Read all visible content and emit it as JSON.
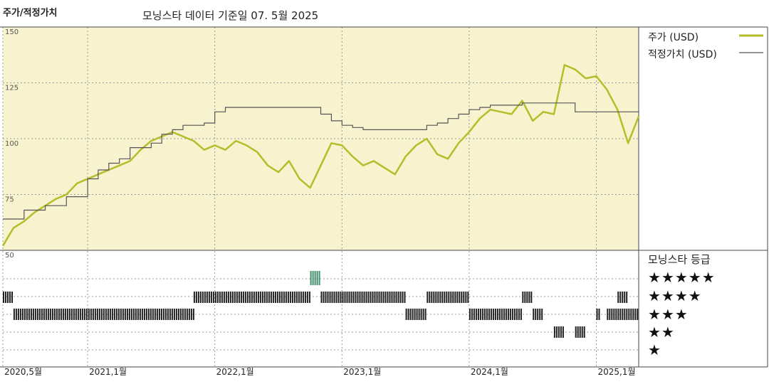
{
  "header": {
    "title": "주가/적정가치",
    "subtitle": "모닝스타 데이터 기준일 07. 5월 2025"
  },
  "legend": {
    "price_label": "주가 (USD)",
    "fair_label": "적정가치 (USD)",
    "price_color": "#b5bd2a",
    "fair_color": "#555555"
  },
  "rating": {
    "title": "모닝스타 등급",
    "stars": [
      "★★★★★",
      "★★★★",
      "★★★",
      "★★",
      "★"
    ],
    "bar_color": "#222222",
    "five_star_color": "#3f8f6a"
  },
  "chart_data": {
    "type": "line",
    "x_axis": {
      "ticks": [
        "2020,5월",
        "2021,1월",
        "2022,1월",
        "2023,1월",
        "2024,1월",
        "2025,1월"
      ],
      "tick_dates": [
        "2020-05",
        "2021-01",
        "2022-01",
        "2023-01",
        "2024-01",
        "2025-01"
      ],
      "range": [
        "2020-05",
        "2025-05"
      ]
    },
    "y_axis": {
      "ticks": [
        150,
        125,
        100,
        75,
        50
      ],
      "range": [
        50,
        150
      ]
    },
    "grid": true,
    "plot_background": "#f7f3cf",
    "series": [
      {
        "name": "주가 (USD)",
        "color": "#b5bd2a",
        "points": [
          [
            "2020-05",
            52
          ],
          [
            "2020-06",
            60
          ],
          [
            "2020-07",
            63
          ],
          [
            "2020-08",
            67
          ],
          [
            "2020-09",
            70
          ],
          [
            "2020-10",
            73
          ],
          [
            "2020-11",
            75
          ],
          [
            "2020-12",
            80
          ],
          [
            "2021-01",
            82
          ],
          [
            "2021-02",
            84
          ],
          [
            "2021-03",
            86
          ],
          [
            "2021-04",
            88
          ],
          [
            "2021-05",
            90
          ],
          [
            "2021-06",
            95
          ],
          [
            "2021-07",
            99
          ],
          [
            "2021-08",
            101
          ],
          [
            "2021-09",
            103
          ],
          [
            "2021-10",
            101
          ],
          [
            "2021-11",
            99
          ],
          [
            "2021-12",
            95
          ],
          [
            "2022-01",
            97
          ],
          [
            "2022-02",
            95
          ],
          [
            "2022-03",
            99
          ],
          [
            "2022-04",
            97
          ],
          [
            "2022-05",
            94
          ],
          [
            "2022-06",
            88
          ],
          [
            "2022-07",
            85
          ],
          [
            "2022-08",
            90
          ],
          [
            "2022-09",
            82
          ],
          [
            "2022-10",
            78
          ],
          [
            "2022-11",
            88
          ],
          [
            "2022-12",
            98
          ],
          [
            "2023-01",
            97
          ],
          [
            "2023-02",
            92
          ],
          [
            "2023-03",
            88
          ],
          [
            "2023-04",
            90
          ],
          [
            "2023-05",
            87
          ],
          [
            "2023-06",
            84
          ],
          [
            "2023-07",
            92
          ],
          [
            "2023-08",
            97
          ],
          [
            "2023-09",
            100
          ],
          [
            "2023-10",
            93
          ],
          [
            "2023-11",
            91
          ],
          [
            "2023-12",
            98
          ],
          [
            "2024-01",
            103
          ],
          [
            "2024-02",
            109
          ],
          [
            "2024-03",
            113
          ],
          [
            "2024-04",
            112
          ],
          [
            "2024-05",
            111
          ],
          [
            "2024-06",
            117
          ],
          [
            "2024-07",
            108
          ],
          [
            "2024-08",
            112
          ],
          [
            "2024-09",
            111
          ],
          [
            "2024-10",
            133
          ],
          [
            "2024-11",
            131
          ],
          [
            "2024-12",
            127
          ],
          [
            "2025-01",
            128
          ],
          [
            "2025-02",
            122
          ],
          [
            "2025-03",
            113
          ],
          [
            "2025-04",
            98
          ],
          [
            "2025-05",
            110
          ]
        ]
      },
      {
        "name": "적정가치 (USD)",
        "color": "#555555",
        "points": [
          [
            "2020-05",
            64
          ],
          [
            "2020-07",
            68
          ],
          [
            "2020-09",
            70
          ],
          [
            "2020-10",
            70
          ],
          [
            "2020-11",
            74
          ],
          [
            "2021-01",
            82
          ],
          [
            "2021-02",
            86
          ],
          [
            "2021-03",
            89
          ],
          [
            "2021-04",
            91
          ],
          [
            "2021-05",
            96
          ],
          [
            "2021-07",
            98
          ],
          [
            "2021-08",
            102
          ],
          [
            "2021-09",
            104
          ],
          [
            "2021-10",
            106
          ],
          [
            "2021-12",
            107
          ],
          [
            "2022-01",
            112
          ],
          [
            "2022-02",
            114
          ],
          [
            "2022-03",
            114
          ],
          [
            "2022-10",
            114
          ],
          [
            "2022-11",
            111
          ],
          [
            "2022-12",
            108
          ],
          [
            "2023-01",
            106
          ],
          [
            "2023-02",
            105
          ],
          [
            "2023-03",
            104
          ],
          [
            "2023-08",
            104
          ],
          [
            "2023-09",
            106
          ],
          [
            "2023-10",
            107
          ],
          [
            "2023-11",
            109
          ],
          [
            "2023-12",
            111
          ],
          [
            "2024-01",
            113
          ],
          [
            "2024-02",
            114
          ],
          [
            "2024-03",
            115
          ],
          [
            "2024-05",
            115
          ],
          [
            "2024-06",
            116
          ],
          [
            "2024-10",
            116
          ],
          [
            "2024-11",
            112
          ],
          [
            "2025-05",
            112
          ]
        ]
      }
    ],
    "rating_history": [
      {
        "stars": 5,
        "start": "2022-10",
        "end": "2022-11"
      },
      {
        "stars": 4,
        "start": "2020-05",
        "end": "2020-06"
      },
      {
        "stars": 4,
        "start": "2021-11",
        "end": "2022-10"
      },
      {
        "stars": 4,
        "start": "2022-11",
        "end": "2023-07"
      },
      {
        "stars": 4,
        "start": "2023-09",
        "end": "2024-01"
      },
      {
        "stars": 4,
        "start": "2024-06",
        "end": "2024-07"
      },
      {
        "stars": 4,
        "start": "2025-03",
        "end": "2025-04"
      },
      {
        "stars": 3,
        "start": "2020-06",
        "end": "2021-11"
      },
      {
        "stars": 3,
        "start": "2023-07",
        "end": "2023-09"
      },
      {
        "stars": 3,
        "start": "2024-01",
        "end": "2024-06"
      },
      {
        "stars": 3,
        "start": "2024-07",
        "end": "2024-08"
      },
      {
        "stars": 3,
        "start": "2025-01",
        "end": "2025-01"
      },
      {
        "stars": 3,
        "start": "2025-02",
        "end": "2025-05"
      },
      {
        "stars": 2,
        "start": "2024-09",
        "end": "2024-10"
      },
      {
        "stars": 2,
        "start": "2024-11",
        "end": "2024-12"
      }
    ]
  }
}
